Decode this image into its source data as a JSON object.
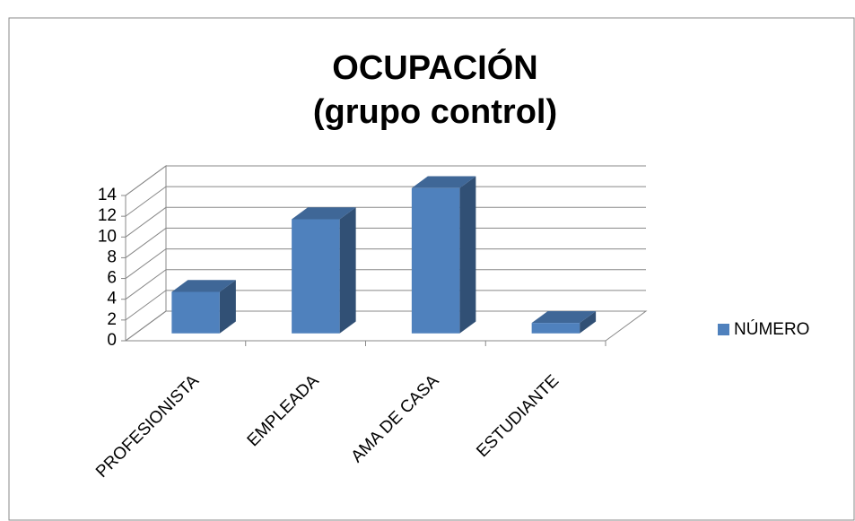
{
  "chart_data": {
    "type": "bar3d",
    "title": "OCUPACIÓN",
    "subtitle": "(grupo control)",
    "categories": [
      "PROFESIONISTA",
      "EMPLEADA",
      "AMA DE CASA",
      "ESTUDIANTE"
    ],
    "series": [
      {
        "name": "NÚMERO",
        "color": "#4f81bd",
        "values": [
          4,
          11,
          14,
          1
        ]
      }
    ],
    "ylim": [
      0,
      14
    ],
    "yticks": [
      0,
      2,
      4,
      6,
      8,
      10,
      12,
      14
    ],
    "grid": true,
    "legend": "right"
  }
}
